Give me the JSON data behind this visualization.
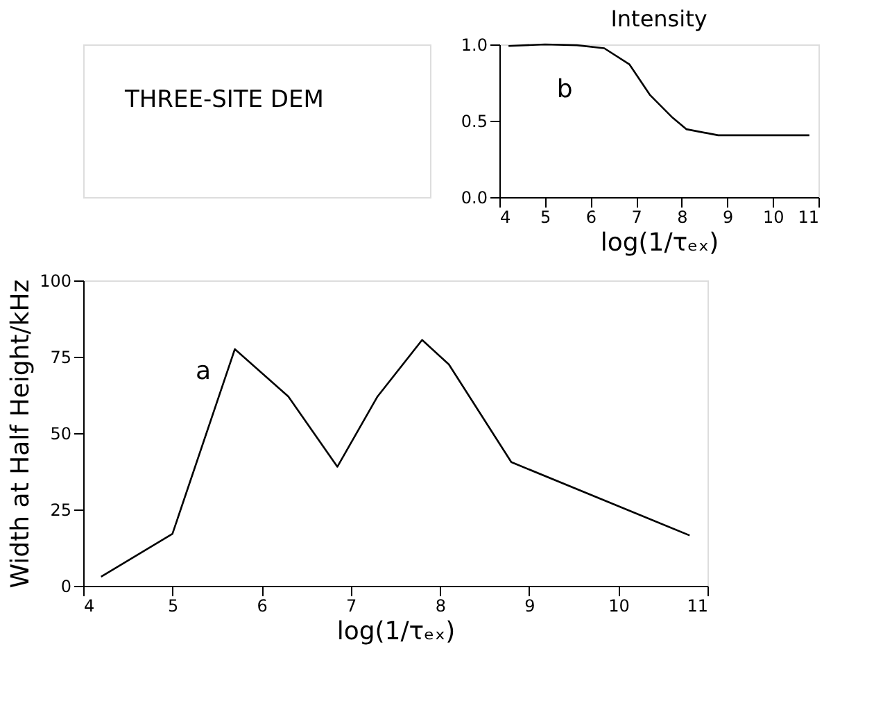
{
  "chart_data": [
    {
      "type": "line",
      "title": "THREE-SITE DEM",
      "xlabel": "log(1/τₑₓ)",
      "ylabel": "Width at Half Height/kHz",
      "annotations": [
        "a"
      ],
      "x": [
        4.2,
        5.0,
        5.7,
        6.3,
        6.85,
        7.3,
        7.8,
        8.1,
        8.8,
        10.8
      ],
      "values": [
        3,
        17,
        77.5,
        62,
        39,
        62,
        80.5,
        72.5,
        40.5,
        16.5
      ],
      "color": "#000000",
      "xlim": [
        4,
        11
      ],
      "xticks": [
        4,
        5,
        6,
        7,
        8,
        9,
        10,
        11
      ],
      "ylim": [
        0,
        100
      ],
      "yticks": [
        0,
        25,
        50,
        75,
        100
      ],
      "grid": false,
      "marker": "none",
      "line_style": "solid"
    },
    {
      "type": "line",
      "title": "Intensity",
      "xlabel": "log(1/τₑₓ)",
      "annotations": [
        "b"
      ],
      "x": [
        4.2,
        5.0,
        5.7,
        6.3,
        6.85,
        7.3,
        7.8,
        8.1,
        8.8,
        10.8
      ],
      "values": [
        0.99,
        1.0,
        0.995,
        0.975,
        0.87,
        0.67,
        0.52,
        0.445,
        0.405,
        0.405
      ],
      "color": "#000000",
      "xlim": [
        4,
        11
      ],
      "xticks": [
        4,
        5,
        6,
        7,
        8,
        9,
        10,
        11
      ],
      "ylim": [
        0,
        1
      ],
      "yticks": [
        {
          "value": 0,
          "label": "0.0"
        },
        {
          "value": 0.5,
          "label": "0.5"
        },
        {
          "value": 1,
          "label": "1.0"
        }
      ],
      "grid": false,
      "marker": "none",
      "line_style": "solid"
    }
  ]
}
